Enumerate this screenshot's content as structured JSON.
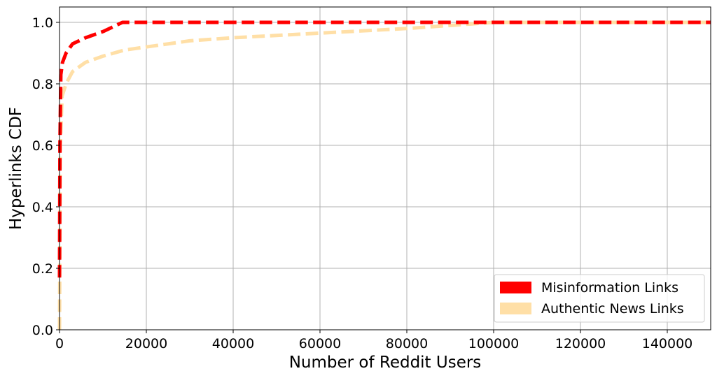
{
  "chart_data": {
    "type": "line",
    "title": "",
    "xlabel": "Number of Reddit Users",
    "ylabel": "Hyperlinks CDF",
    "xlim": [
      0,
      150000
    ],
    "ylim": [
      0,
      1.05
    ],
    "xticks": [
      0,
      20000,
      40000,
      60000,
      80000,
      100000,
      120000,
      140000
    ],
    "xtick_labels": [
      "0",
      "20000",
      "40000",
      "60000",
      "80000",
      "100000",
      "120000",
      "140000"
    ],
    "yticks": [
      0.0,
      0.2,
      0.4,
      0.6,
      0.8,
      1.0
    ],
    "ytick_labels": [
      "0.0",
      "0.2",
      "0.4",
      "0.6",
      "0.8",
      "1.0"
    ],
    "grid": true,
    "legend_position": "bottom-right",
    "series": [
      {
        "name": "Misinformation Links",
        "color": "#ff0000",
        "style": "dashed",
        "x": [
          0,
          100,
          300,
          700,
          1500,
          3000,
          6000,
          10000,
          14500,
          20000,
          40000,
          60000,
          80000,
          100000,
          120000,
          140000,
          150000
        ],
        "y": [
          0.17,
          0.6,
          0.83,
          0.87,
          0.9,
          0.93,
          0.95,
          0.97,
          1.0,
          1.0,
          1.0,
          1.0,
          1.0,
          1.0,
          1.0,
          1.0,
          1.0
        ]
      },
      {
        "name": "Authentic News Links",
        "color": "#ffdfa6",
        "style": "dashed",
        "x": [
          0,
          200,
          600,
          1500,
          3000,
          6000,
          10000,
          15000,
          20000,
          30000,
          40000,
          60000,
          80000,
          95000,
          100000,
          150000
        ],
        "y": [
          0.0,
          0.6,
          0.76,
          0.8,
          0.84,
          0.87,
          0.89,
          0.91,
          0.92,
          0.94,
          0.95,
          0.965,
          0.98,
          0.995,
          1.0,
          1.0
        ]
      }
    ]
  }
}
